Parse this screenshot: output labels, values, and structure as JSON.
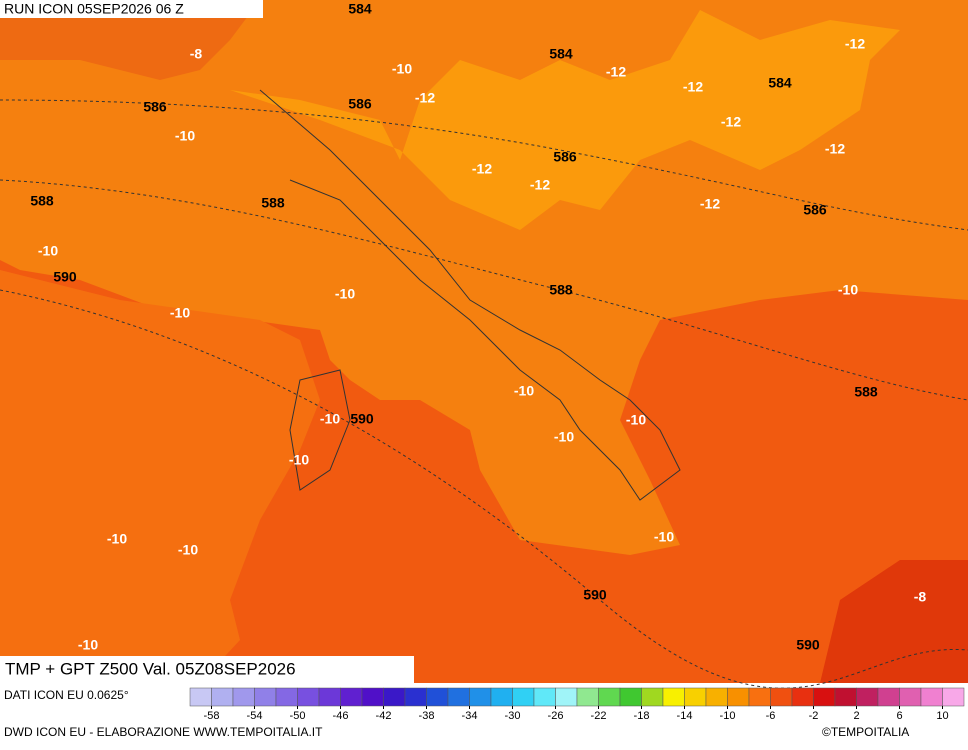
{
  "header": {
    "title": "RUN ICON 05SEP2026 06 Z"
  },
  "map": {
    "title": "TMP + GPT Z500 Val. 05Z08SEP2026",
    "gpt_labels": [
      584,
      584,
      584,
      586,
      586,
      586,
      586,
      588,
      588,
      588,
      588,
      590,
      590,
      590,
      590
    ],
    "tmp_labels": [
      -8,
      -10,
      -12,
      -12,
      -12,
      -12,
      -10,
      -12,
      -12,
      -12,
      -12,
      -12,
      -10,
      -10,
      -10,
      -10,
      -10,
      -10,
      -10,
      -10,
      -10,
      -10,
      -10,
      -10,
      -8,
      -10
    ]
  },
  "legend": {
    "source": "DATI ICON EU 0.0625°",
    "colors": [
      "#c8c8f4",
      "#b0b0f0",
      "#a098ec",
      "#9080e8",
      "#8468e4",
      "#7850e0",
      "#6c38d8",
      "#6020d0",
      "#5010c8",
      "#3a18c8",
      "#2a30d0",
      "#2050d8",
      "#2070e0",
      "#2090e8",
      "#20b0f0",
      "#30d0f4",
      "#60e8f8",
      "#a0f4f8",
      "#90e890",
      "#60d850",
      "#40c830",
      "#a0d820",
      "#f8f000",
      "#f8d000",
      "#f8b000",
      "#f89000",
      "#f87010",
      "#f05010",
      "#e83010",
      "#d81010",
      "#c01030",
      "#c02060",
      "#d04090",
      "#e060b0",
      "#f080d0",
      "#f8a8e8"
    ],
    "ticks": [
      -58,
      -54,
      -50,
      -46,
      -42,
      -38,
      -34,
      -30,
      -26,
      -22,
      -18,
      -14,
      -10,
      -6,
      -2,
      2,
      6,
      10
    ]
  },
  "footer": {
    "credit": "DWD ICON EU - ELABORAZIONE WWW.TEMPOITALIA.IT",
    "copyright": "©TEMPOITALIA"
  }
}
